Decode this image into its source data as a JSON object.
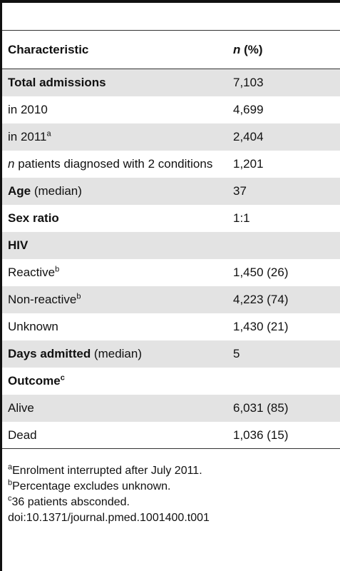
{
  "table": {
    "header": [
      [
        {
          "text": "Characteristic",
          "bold": true
        }
      ],
      [
        {
          "text": "n",
          "bold": true,
          "italic": true
        },
        {
          "text": " (%)",
          "bold": true
        }
      ]
    ],
    "rows": [
      {
        "label": [
          {
            "text": "Total admissions",
            "bold": true
          }
        ],
        "value": "7,103",
        "shaded": true
      },
      {
        "label": [
          {
            "text": "in 2010"
          }
        ],
        "value": "4,699",
        "shaded": false
      },
      {
        "label": [
          {
            "text": "in 2011"
          },
          {
            "text": "a",
            "sup": true
          }
        ],
        "value": "2,404",
        "shaded": true
      },
      {
        "label": [
          {
            "text": "n",
            "italic": true
          },
          {
            "text": " patients diagnosed with 2 conditions"
          }
        ],
        "value": "1,201",
        "shaded": false
      },
      {
        "label": [
          {
            "text": "Age",
            "bold": true
          },
          {
            "text": " (median)"
          }
        ],
        "value": "37",
        "shaded": true
      },
      {
        "label": [
          {
            "text": "Sex ratio",
            "bold": true
          }
        ],
        "value": "1:1",
        "shaded": false
      },
      {
        "label": [
          {
            "text": "HIV",
            "bold": true
          }
        ],
        "value": null,
        "shaded": true
      },
      {
        "label": [
          {
            "text": "Reactive"
          },
          {
            "text": "b",
            "sup": true
          }
        ],
        "value": "1,450 (26)",
        "shaded": false
      },
      {
        "label": [
          {
            "text": "Non-reactive"
          },
          {
            "text": "b",
            "sup": true
          }
        ],
        "value": "4,223 (74)",
        "shaded": true
      },
      {
        "label": [
          {
            "text": "Unknown"
          }
        ],
        "value": "1,430 (21)",
        "shaded": false
      },
      {
        "label": [
          {
            "text": "Days admitted",
            "bold": true
          },
          {
            "text": " (median)"
          }
        ],
        "value": "5",
        "shaded": true
      },
      {
        "label": [
          {
            "text": "Outcome",
            "bold": true
          },
          {
            "text": "c",
            "sup": true,
            "bold": true
          }
        ],
        "value": null,
        "shaded": false
      },
      {
        "label": [
          {
            "text": "Alive"
          }
        ],
        "value": "6,031 (85)",
        "shaded": true
      },
      {
        "label": [
          {
            "text": "Dead"
          }
        ],
        "value": "1,036 (15)",
        "shaded": false
      }
    ],
    "footnotes": [
      {
        "mark": "a",
        "text": "Enrolment interrupted after July 2011."
      },
      {
        "mark": "b",
        "text": "Percentage excludes unknown."
      },
      {
        "mark": "c",
        "text": "36 patients absconded."
      }
    ],
    "doi": "doi:10.1371/journal.pmed.1001400.t001"
  }
}
